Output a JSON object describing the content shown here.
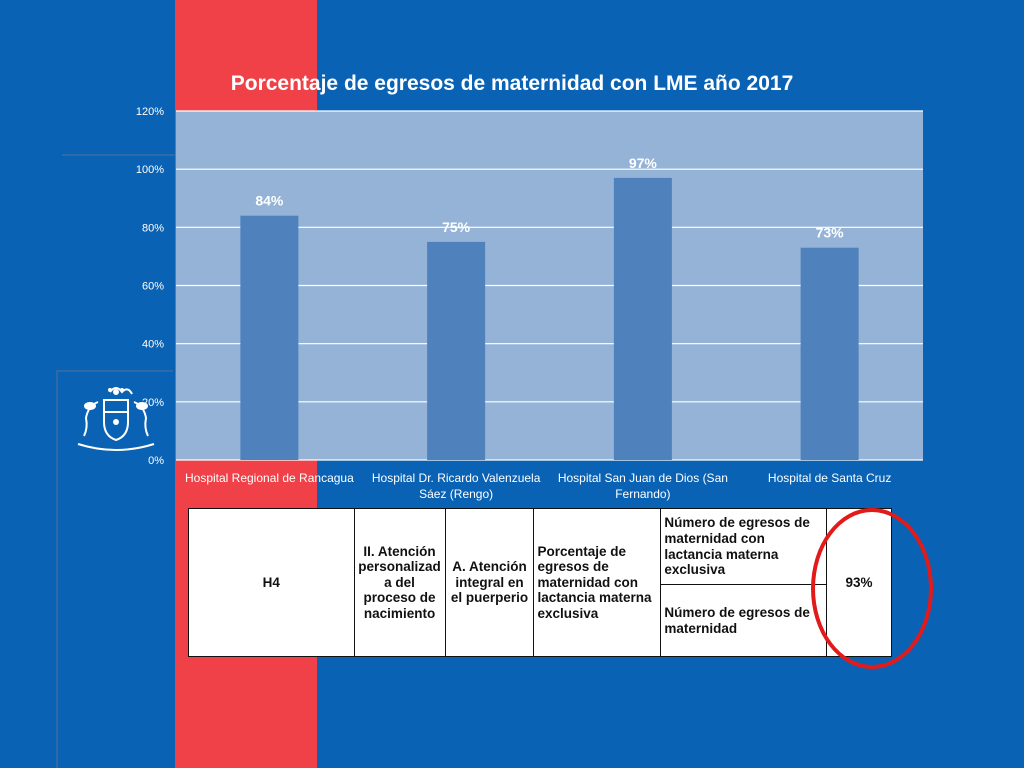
{
  "chart_data": {
    "type": "bar",
    "title": "Porcentaje de egresos de maternidad con LME año 2017",
    "categories": [
      [
        "Hospital Regional de Rancagua"
      ],
      [
        "Hospital Dr. Ricardo Valenzuela",
        "Sáez (Rengo)"
      ],
      [
        "Hospital San Juan de Dios (San",
        "Fernando)"
      ],
      [
        "Hospital de Santa Cruz"
      ]
    ],
    "values": [
      84,
      75,
      97,
      73
    ],
    "data_labels": [
      "84%",
      "75%",
      "97%",
      "73%"
    ],
    "ylim": [
      0,
      120
    ],
    "yticks": [
      0,
      20,
      40,
      60,
      80,
      100,
      120
    ],
    "ytick_labels": [
      "0%",
      "20%",
      "40%",
      "60%",
      "80%",
      "100%",
      "120%"
    ],
    "grid": true,
    "colors": {
      "bar": "#4f81bd",
      "plot_bg": "#95b3d7",
      "grid": "#ffffff"
    }
  },
  "table": {
    "code": "H4",
    "axis": "II. Atención personalizad a del proceso de nacimiento",
    "component": "A. Atención integral en el puerperio",
    "indicator": "Porcentaje de egresos de maternidad con lactancia materna exclusiva",
    "numerator": "Número de egresos de maternidad con lactancia materna exclusiva",
    "denominator": "Número de egresos de maternidad",
    "result": "93%"
  },
  "colors": {
    "background": "#0a62b4",
    "red_band": "#ef4147",
    "highlight_circle": "#e21a1a"
  }
}
